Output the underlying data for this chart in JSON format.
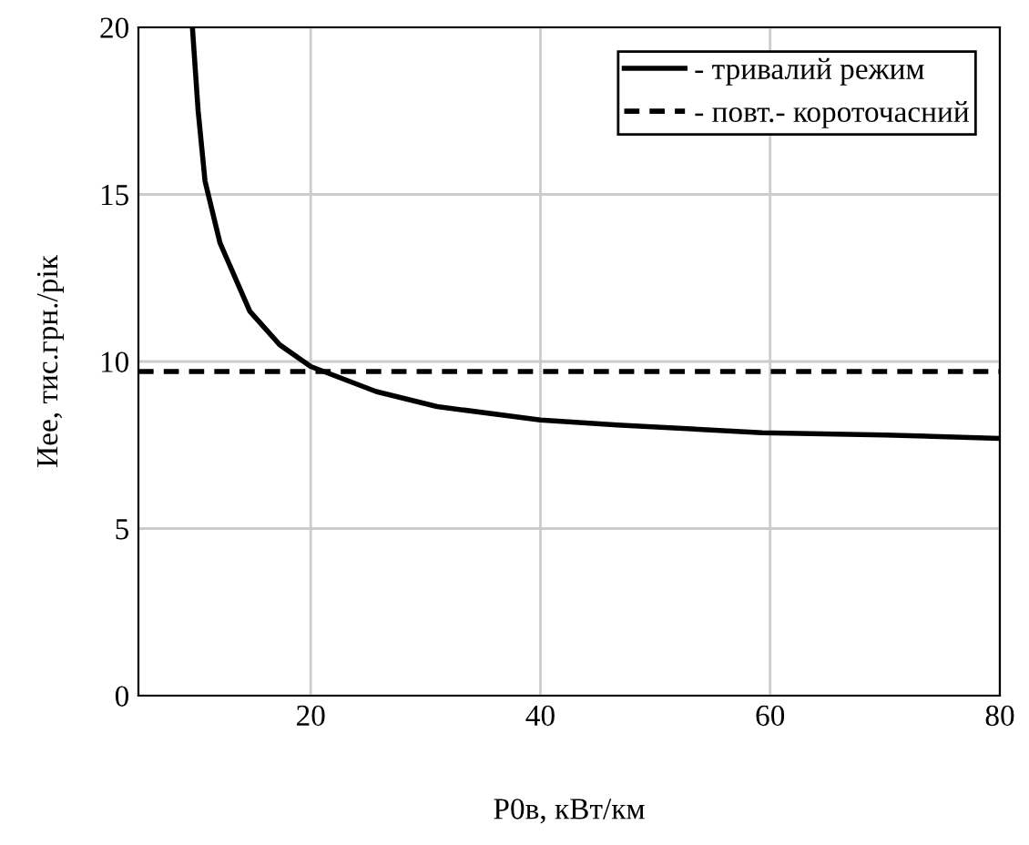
{
  "chart_data": {
    "type": "line",
    "xlabel": "P0в, кВт/км",
    "ylabel": "Иее, тис.грн./рік",
    "xlim": [
      5,
      80
    ],
    "xticks": [
      20,
      40,
      60,
      80
    ],
    "ylim": [
      0,
      20
    ],
    "yticks": [
      0,
      5,
      10,
      15,
      20
    ],
    "grid": true,
    "legend": "top right",
    "marker": "none",
    "series": [
      {
        "name": "- тривалий режим",
        "color": "#000000",
        "line_style": "solid",
        "x": [
          9.7,
          10.2,
          10.8,
          12.1,
          14.7,
          17.3,
          20,
          25.7,
          31,
          40,
          46.7,
          59.3,
          70,
          80
        ],
        "values": [
          20,
          17.5,
          15.4,
          13.55,
          11.5,
          10.5,
          9.85,
          9.1,
          8.65,
          8.25,
          8.1,
          7.87,
          7.8,
          7.7
        ]
      },
      {
        "name": "- повт.- короточасний",
        "color": "#000000",
        "line_style": "dashed",
        "x": [
          5,
          80
        ],
        "values": [
          9.7,
          9.7
        ]
      }
    ]
  }
}
